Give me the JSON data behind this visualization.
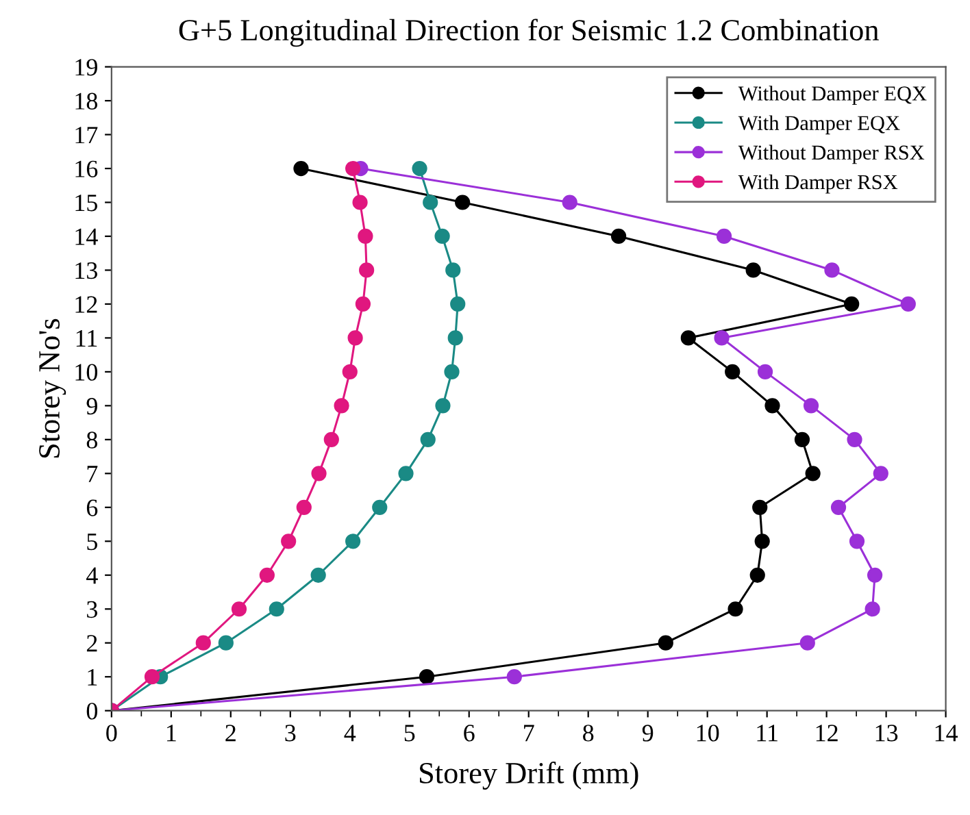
{
  "chart_data": {
    "type": "line",
    "title": "G+5 Longitudinal Direction for Seismic 1.2 Combination",
    "xlabel": "Storey Drift (mm)",
    "ylabel": "Storey No's",
    "series": [
      {
        "name": "Without Damper EQX",
        "color": "#000000",
        "x": [
          0,
          5.29,
          9.3,
          10.47,
          10.84,
          10.92,
          10.88,
          11.77,
          11.59,
          11.09,
          10.42,
          9.68,
          12.42,
          10.77,
          8.51,
          5.89,
          3.18
        ],
        "values": [
          0,
          1,
          2,
          3,
          4,
          5,
          6,
          7,
          8,
          9,
          10,
          11,
          12,
          13,
          14,
          15,
          16
        ]
      },
      {
        "name": "With Damper EQX",
        "color": "#1a8a85",
        "x": [
          0,
          0.82,
          1.92,
          2.77,
          3.47,
          4.05,
          4.5,
          4.94,
          5.31,
          5.56,
          5.71,
          5.77,
          5.81,
          5.73,
          5.55,
          5.35,
          5.17
        ],
        "values": [
          0,
          1,
          2,
          3,
          4,
          5,
          6,
          7,
          8,
          9,
          10,
          11,
          12,
          13,
          14,
          15,
          16
        ]
      },
      {
        "name": "Without Damper RSX",
        "color": "#9b30d8",
        "x": [
          0,
          6.76,
          11.68,
          12.77,
          12.81,
          12.51,
          12.2,
          12.91,
          12.47,
          11.74,
          10.97,
          10.24,
          13.37,
          12.09,
          10.28,
          7.69,
          4.18
        ],
        "values": [
          0,
          1,
          2,
          3,
          4,
          5,
          6,
          7,
          8,
          9,
          10,
          11,
          12,
          13,
          14,
          15,
          16
        ]
      },
      {
        "name": "With Damper RSX",
        "color": "#e0177f",
        "x": [
          0,
          0.68,
          1.54,
          2.14,
          2.61,
          2.97,
          3.23,
          3.48,
          3.69,
          3.86,
          4.0,
          4.09,
          4.22,
          4.28,
          4.26,
          4.17,
          4.05
        ],
        "values": [
          0,
          1,
          2,
          3,
          4,
          5,
          6,
          7,
          8,
          9,
          10,
          11,
          12,
          13,
          14,
          15,
          16
        ]
      }
    ],
    "xlim": [
      0,
      14
    ],
    "xticks": [
      0,
      1,
      2,
      3,
      4,
      5,
      6,
      7,
      8,
      9,
      10,
      11,
      12,
      13,
      14
    ],
    "ylim": [
      0,
      19
    ],
    "yticks": [
      0,
      1,
      2,
      3,
      4,
      5,
      6,
      7,
      8,
      9,
      10,
      11,
      12,
      13,
      14,
      15,
      16,
      17,
      18,
      19
    ],
    "marker": "circle",
    "line_style": "solid",
    "legend": "top right",
    "grid": false
  }
}
